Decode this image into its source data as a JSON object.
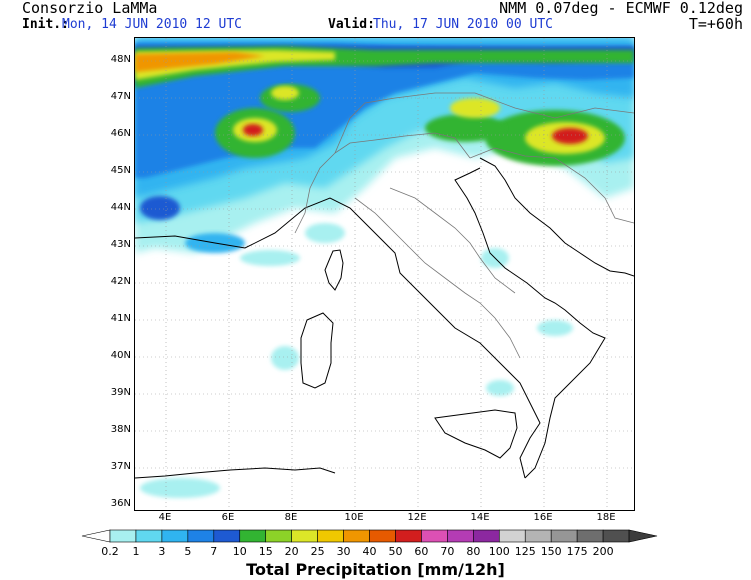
{
  "header": {
    "org": "Consorzio LaMMa",
    "model": "NMM 0.07deg - ECMWF 0.12deg",
    "init_prefix": "Init.:",
    "init_value": "Mon, 14 JUN 2010   12 UTC",
    "valid_prefix": "Valid:",
    "valid_value": "Thu, 17 JUN 2010   00 UTC",
    "forecast_step": "T=+60h"
  },
  "axes": {
    "lat_labels": [
      "48N",
      "47N",
      "46N",
      "45N",
      "44N",
      "43N",
      "42N",
      "41N",
      "40N",
      "39N",
      "38N",
      "37N",
      "36N"
    ],
    "lon_labels": [
      "4E",
      "6E",
      "8E",
      "10E",
      "12E",
      "14E",
      "16E",
      "18E"
    ],
    "lat_range": [
      36,
      48.9
    ],
    "lon_range": [
      3.1,
      18.9
    ]
  },
  "colorbar": {
    "title": "Total Precipitation [mm/12h]",
    "levels": [
      "0.2",
      "1",
      "3",
      "5",
      "7",
      "10",
      "15",
      "20",
      "25",
      "30",
      "40",
      "50",
      "60",
      "70",
      "80",
      "100",
      "125",
      "150",
      "175",
      "200"
    ],
    "colors": [
      "#a8f0f0",
      "#60d8f0",
      "#30b4f0",
      "#1e82e6",
      "#1e5ad2",
      "#32b432",
      "#8cd228",
      "#dce628",
      "#f0c800",
      "#f09600",
      "#e65a00",
      "#d21e1e",
      "#dc50b4",
      "#b43cb4",
      "#8c28a0",
      "#d2d2d2",
      "#b4b4b4",
      "#969696",
      "#6e6e6e",
      "#505050"
    ]
  },
  "map": {
    "land_color": "#ffffff",
    "sea_color": "#ffffff",
    "coast_color": "#000000",
    "border_color": "#787878",
    "grid": "dotted"
  }
}
